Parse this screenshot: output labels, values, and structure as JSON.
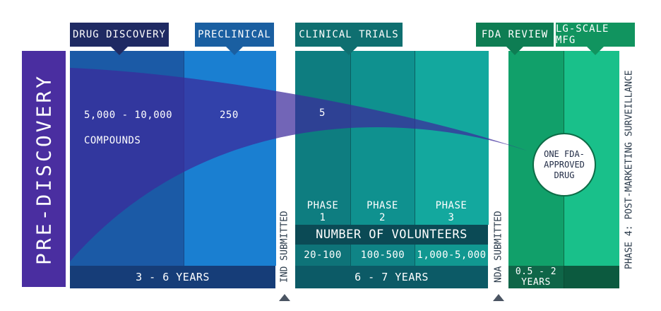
{
  "pre_discovery": "PRE-DISCOVERY",
  "stages": {
    "drug_discovery": "DRUG DISCOVERY",
    "preclinical": "PRECLINICAL",
    "clinical_trials": "CLINICAL TRIALS",
    "fda_review": "FDA REVIEW",
    "lg_scale_mfg": "LG-SCALE MFG"
  },
  "compounds": {
    "discovery_count": "5,000 - 10,000",
    "discovery_unit": "COMPOUNDS",
    "preclinical_count": "250",
    "clinical_count": "5"
  },
  "phases": [
    {
      "label": "PHASE",
      "number": "1",
      "volunteers": "20-100"
    },
    {
      "label": "PHASE",
      "number": "2",
      "volunteers": "100-500"
    },
    {
      "label": "PHASE",
      "number": "3",
      "volunteers": "1,000-5,000"
    }
  ],
  "volunteers_header": "NUMBER OF VOLUNTEERS",
  "durations": {
    "discovery_preclinical": "3 - 6 YEARS",
    "clinical": "6 - 7 YEARS",
    "fda_line1": "0.5 - 2",
    "fda_line2": "YEARS"
  },
  "milestones": {
    "ind": "IND SUBMITTED",
    "nda": "NDA SUBMITTED",
    "phase4": "PHASE 4: POST-MARKETING SURVEILLANCE"
  },
  "result": {
    "line1": "ONE FDA-",
    "line2": "APPROVED",
    "line3": "DRUG"
  }
}
